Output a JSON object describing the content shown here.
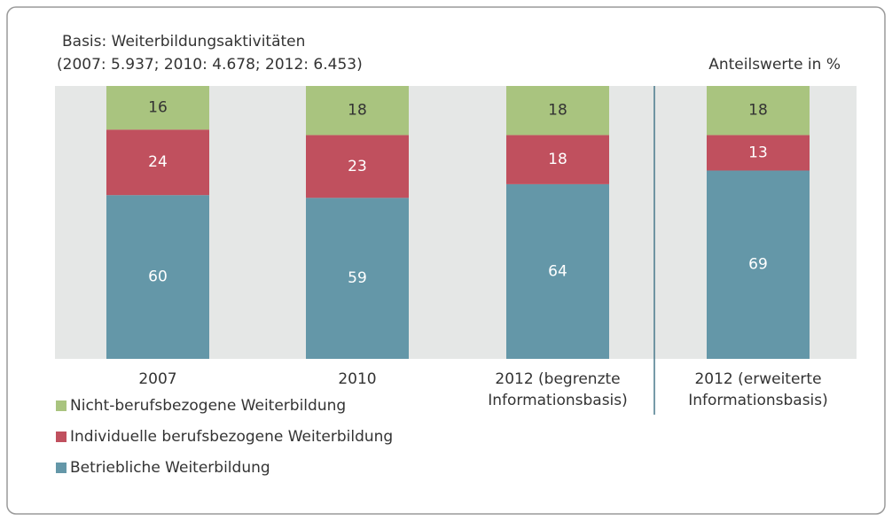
{
  "chart_data": {
    "type": "stacked_bar",
    "subtitle": [
      "Basis: Weiterbildungsaktivitäten",
      "(2007: 5.937; 2010: 4.678; 2012: 6.453)"
    ],
    "unit_label": "Anteilswerte  in %",
    "categories": [
      "2007",
      "2010",
      "2012 (begrenzte\nInformationsbasis)",
      "2012 (erweiterte\nInformationsbasis)"
    ],
    "series": [
      {
        "name": "Nicht-berufsbezogene Weiterbildung",
        "color": "#a9c47f",
        "label_color": "#333333",
        "values": [
          16,
          18,
          18,
          18
        ]
      },
      {
        "name": "Individuelle berufsbezogene Weiterbildung",
        "color": "#c0505e",
        "label_color": "#ffffff",
        "values": [
          24,
          23,
          18,
          13
        ]
      },
      {
        "name": "Betriebliche Weiterbildung",
        "color": "#6497a8",
        "label_color": "#ffffff",
        "values": [
          60,
          59,
          64,
          69
        ]
      }
    ],
    "ylim": [
      0,
      100
    ]
  }
}
